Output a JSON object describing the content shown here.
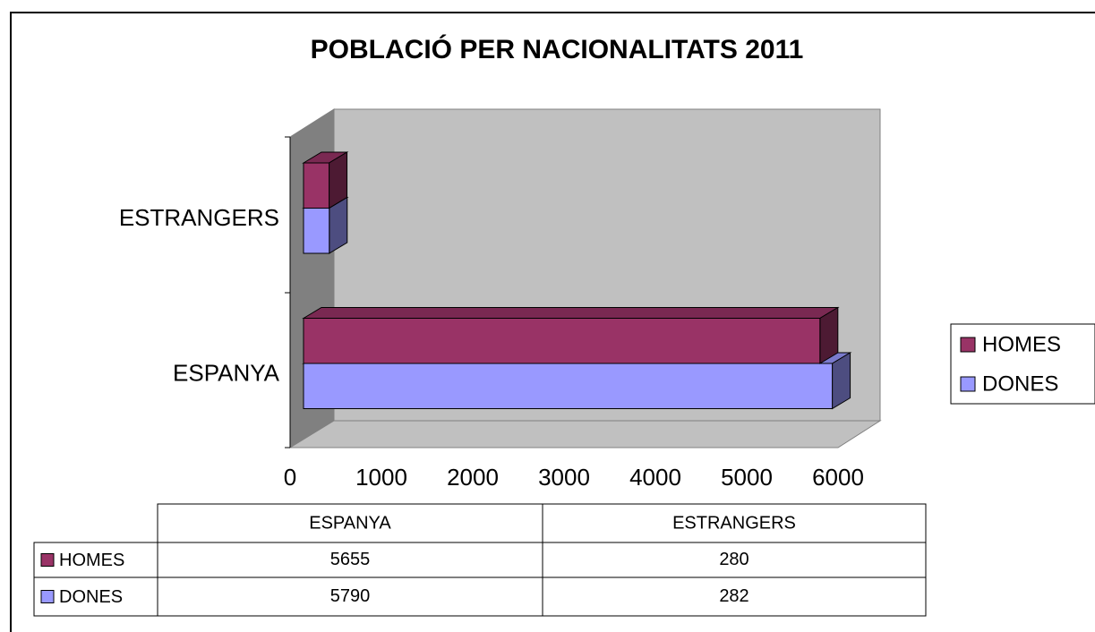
{
  "chart_data": {
    "type": "bar3d_horizontal",
    "title": "POBLACIÓ PER NACIONALITATS 2011",
    "categories": [
      "ESPANYA",
      "ESTRANGERS"
    ],
    "series": [
      {
        "name": "HOMES",
        "color": "#993366",
        "values": [
          5655,
          280
        ]
      },
      {
        "name": "DONES",
        "color": "#9999ff",
        "values": [
          5790,
          282
        ]
      }
    ],
    "xlim": [
      0,
      6000
    ],
    "xticks": [
      0,
      1000,
      2000,
      3000,
      4000,
      5000,
      6000
    ],
    "legend": "right"
  }
}
